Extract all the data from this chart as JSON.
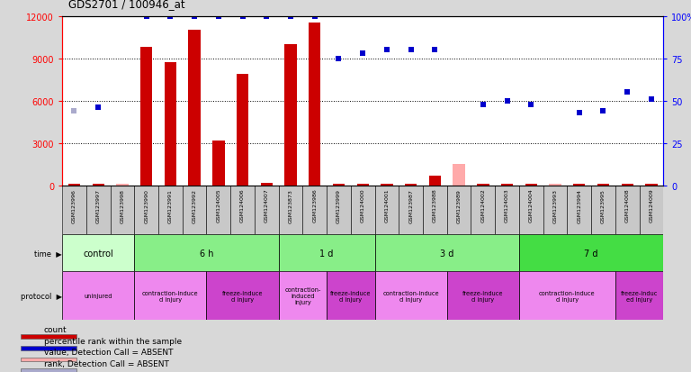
{
  "title": "GDS2701 / 100946_at",
  "samples": [
    "GSM123996",
    "GSM123997",
    "GSM123998",
    "GSM123990",
    "GSM123991",
    "GSM123992",
    "GSM124005",
    "GSM124006",
    "GSM124007",
    "GSM123873",
    "GSM123986",
    "GSM123999",
    "GSM124000",
    "GSM124001",
    "GSM123987",
    "GSM123988",
    "GSM123989",
    "GSM124002",
    "GSM124003",
    "GSM124004",
    "GSM123993",
    "GSM123994",
    "GSM123995",
    "GSM124008",
    "GSM124009"
  ],
  "bar_values": [
    100,
    110,
    100,
    9800,
    8700,
    11000,
    3200,
    7900,
    200,
    10000,
    11500,
    120,
    120,
    100,
    100,
    700,
    1500,
    100,
    100,
    100,
    100,
    100,
    100,
    100,
    100
  ],
  "rank_values": [
    44,
    46,
    null,
    100,
    100,
    100,
    100,
    100,
    100,
    100,
    100,
    75,
    78,
    80,
    80,
    80,
    null,
    48,
    50,
    48,
    null,
    43,
    44,
    55,
    51
  ],
  "absent_bar": [
    false,
    false,
    true,
    false,
    false,
    false,
    false,
    false,
    false,
    false,
    false,
    false,
    false,
    false,
    false,
    false,
    true,
    false,
    false,
    false,
    true,
    false,
    false,
    false,
    false
  ],
  "absent_rank": [
    true,
    false,
    false,
    false,
    false,
    false,
    false,
    false,
    false,
    false,
    false,
    false,
    false,
    false,
    false,
    false,
    false,
    false,
    false,
    false,
    true,
    false,
    false,
    false,
    false
  ],
  "ylim_left": [
    0,
    12000
  ],
  "ylim_right": [
    0,
    100
  ],
  "yticks_left": [
    0,
    3000,
    6000,
    9000,
    12000
  ],
  "ytick_labels_left": [
    "0",
    "3000",
    "6000",
    "9000",
    "12000"
  ],
  "yticks_right": [
    0,
    25,
    50,
    75,
    100
  ],
  "ytick_labels_right": [
    "0",
    "25",
    "50",
    "75",
    "100%"
  ],
  "bar_color": "#cc0000",
  "absent_bar_color": "#ffaaaa",
  "rank_color": "#0000cc",
  "absent_rank_color": "#aaaacc",
  "time_groups": [
    {
      "label": "control",
      "start": 0,
      "end": 3,
      "color": "#ccffcc"
    },
    {
      "label": "6 h",
      "start": 3,
      "end": 9,
      "color": "#88ee88"
    },
    {
      "label": "1 d",
      "start": 9,
      "end": 13,
      "color": "#88ee88"
    },
    {
      "label": "3 d",
      "start": 13,
      "end": 19,
      "color": "#88ee88"
    },
    {
      "label": "7 d",
      "start": 19,
      "end": 25,
      "color": "#44dd44"
    }
  ],
  "protocol_groups": [
    {
      "label": "uninjured",
      "start": 0,
      "end": 3,
      "color": "#ee88ee"
    },
    {
      "label": "contraction-induce\nd injury",
      "start": 3,
      "end": 6,
      "color": "#ee88ee"
    },
    {
      "label": "freeze-induce\nd injury",
      "start": 6,
      "end": 9,
      "color": "#cc44cc"
    },
    {
      "label": "contraction-\ninduced\ninjury",
      "start": 9,
      "end": 11,
      "color": "#ee88ee"
    },
    {
      "label": "freeze-induce\nd injury",
      "start": 11,
      "end": 13,
      "color": "#cc44cc"
    },
    {
      "label": "contraction-induce\nd injury",
      "start": 13,
      "end": 16,
      "color": "#ee88ee"
    },
    {
      "label": "freeze-induce\nd injury",
      "start": 16,
      "end": 19,
      "color": "#cc44cc"
    },
    {
      "label": "contraction-induce\nd injury",
      "start": 19,
      "end": 23,
      "color": "#ee88ee"
    },
    {
      "label": "freeze-induc\ned injury",
      "start": 23,
      "end": 25,
      "color": "#cc44cc"
    }
  ],
  "legend_items": [
    {
      "label": "count",
      "color": "#cc0000"
    },
    {
      "label": "percentile rank within the sample",
      "color": "#0000cc"
    },
    {
      "label": "value, Detection Call = ABSENT",
      "color": "#ffaaaa"
    },
    {
      "label": "rank, Detection Call = ABSENT",
      "color": "#aaaacc"
    }
  ],
  "bg_color": "#d8d8d8",
  "plot_bg": "#ffffff",
  "sample_box_color": "#c8c8c8"
}
